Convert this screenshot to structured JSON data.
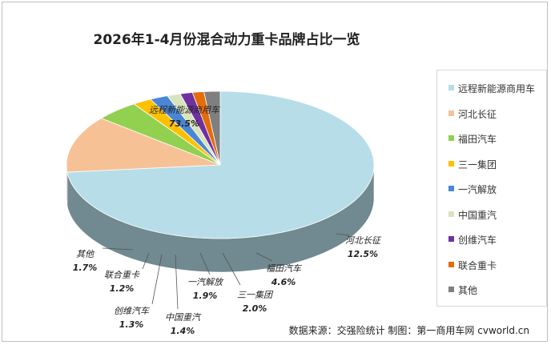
{
  "chart_data": {
    "type": "pie",
    "title": "2026年1-4月份混合动力重卡品牌占比一览",
    "slices": [
      {
        "label": "远程新能源商用车",
        "value": 73.5,
        "value_label": "73.5%",
        "color": "#b7dde8"
      },
      {
        "label": "河北长征",
        "value": 12.5,
        "value_label": "12.5%",
        "color": "#f7c196"
      },
      {
        "label": "福田汽车",
        "value": 4.6,
        "value_label": "4.6%",
        "color": "#92d050"
      },
      {
        "label": "三一集团",
        "value": 2.0,
        "value_label": "2.0%",
        "color": "#ffc000"
      },
      {
        "label": "一汽解放",
        "value": 1.9,
        "value_label": "1.9%",
        "color": "#4a86d4"
      },
      {
        "label": "中国重汽",
        "value": 1.4,
        "value_label": "1.4%",
        "color": "#d8e4bc"
      },
      {
        "label": "创维汽车",
        "value": 1.3,
        "value_label": "1.3%",
        "color": "#7030a0"
      },
      {
        "label": "联合重卡",
        "value": 1.2,
        "value_label": "1.2%",
        "color": "#e46c0a"
      },
      {
        "label": "其他",
        "value": 1.7,
        "value_label": "1.7%",
        "color": "#7f7f7f"
      }
    ],
    "legend_position": "right"
  },
  "source_note": "数据来源：交强险统计  制图：第一商用车网 cvworld.cn"
}
